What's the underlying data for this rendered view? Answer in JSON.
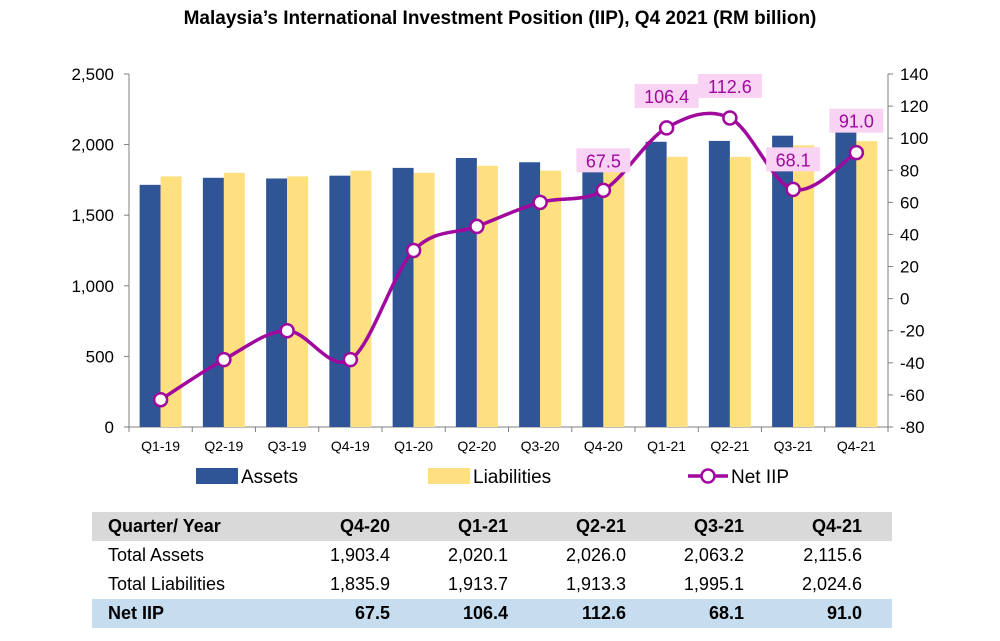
{
  "chart_data": {
    "type": "bar+line",
    "title": "Malaysia’s International Investment Position (IIP), Q4 2021 (RM billion)",
    "categories": [
      "Q1-19",
      "Q2-19",
      "Q3-19",
      "Q4-19",
      "Q1-20",
      "Q2-20",
      "Q3-20",
      "Q4-20",
      "Q1-21",
      "Q2-21",
      "Q3-21",
      "Q4-21"
    ],
    "series": [
      {
        "name": "Assets",
        "type": "bar",
        "axis": "left",
        "values": [
          1715,
          1765,
          1760,
          1780,
          1835,
          1905,
          1875,
          1903.4,
          2020.1,
          2026.0,
          2063.2,
          2115.6
        ]
      },
      {
        "name": "Liabilities",
        "type": "bar",
        "axis": "left",
        "values": [
          1775,
          1800,
          1775,
          1815,
          1800,
          1850,
          1815,
          1835.9,
          1913.7,
          1913.3,
          1995.1,
          2024.6
        ]
      },
      {
        "name": "Net IIP",
        "type": "line",
        "axis": "right",
        "values": [
          -63,
          -38,
          -20,
          -38,
          30,
          45,
          60,
          67.5,
          106.4,
          112.6,
          68.1,
          91.0
        ]
      }
    ],
    "data_labels": [
      "67.5",
      "106.4",
      "112.6",
      "68.1",
      "91.0"
    ],
    "y_left": {
      "min": 0,
      "max": 2500,
      "ticks": [
        "0",
        "500",
        "1,000",
        "1,500",
        "2,000",
        "2,500"
      ]
    },
    "y_right": {
      "min": -80,
      "max": 140,
      "ticks": [
        "-80",
        "-60",
        "-40",
        "-20",
        "0",
        "20",
        "40",
        "60",
        "80",
        "100",
        "120",
        "140"
      ]
    },
    "legend": [
      "Assets",
      "Liabilities",
      "Net IIP"
    ],
    "legend_position": "bottom",
    "colors": {
      "assets": "#2f5597",
      "liabilities": "#ffe080",
      "net_iip": "#a0089e",
      "label_bg": "#f9d3f4"
    }
  },
  "table": {
    "headers": [
      "Quarter/ Year",
      "Q4-20",
      "Q1-21",
      "Q2-21",
      "Q3-21",
      "Q4-21"
    ],
    "rows": [
      {
        "label": "Total Assets",
        "values": [
          "1,903.4",
          "2,020.1",
          "2,026.0",
          "2,063.2",
          "2,115.6"
        ]
      },
      {
        "label": "Total Liabilities",
        "values": [
          "1,835.9",
          "1,913.7",
          "1,913.3",
          "1,995.1",
          "2,024.6"
        ]
      }
    ],
    "net_row": {
      "label": "Net IIP",
      "values": [
        "67.5",
        "106.4",
        "112.6",
        "68.1",
        "91.0"
      ]
    }
  }
}
